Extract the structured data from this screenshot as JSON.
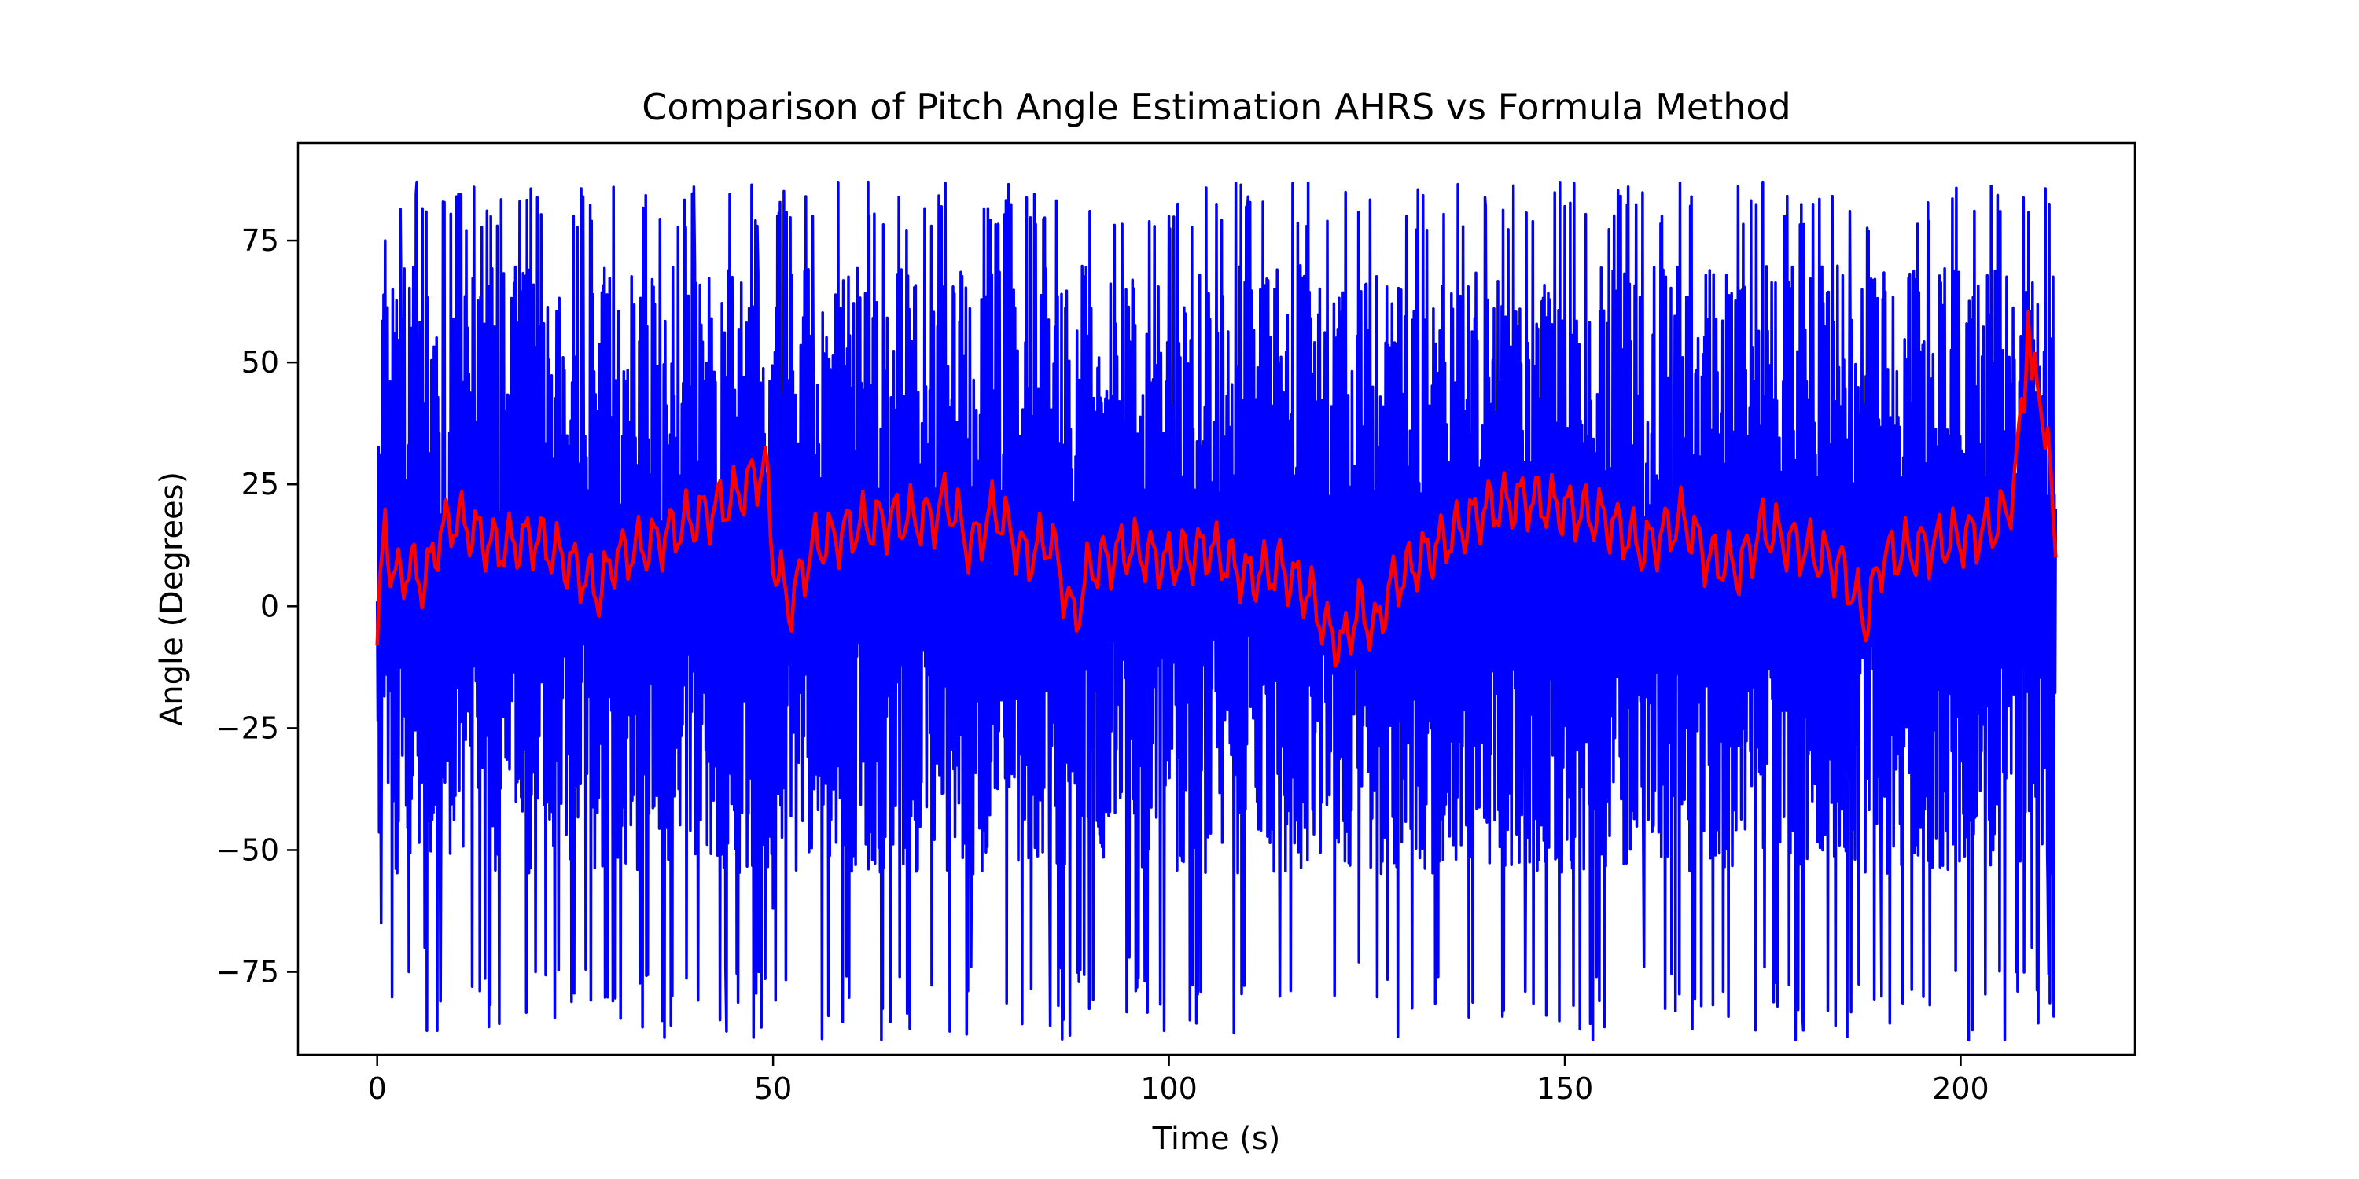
{
  "chart_data": {
    "type": "line",
    "title": "Comparison of Pitch Angle Estimation AHRS vs Formula Method",
    "xlabel": "Time (s)",
    "ylabel": "Angle (Degrees)",
    "xlim": [
      -10,
      222
    ],
    "ylim": [
      -92,
      95
    ],
    "x_ticks": [
      0,
      50,
      100,
      150,
      200
    ],
    "y_ticks": [
      -75,
      -50,
      -25,
      0,
      25,
      50,
      75
    ],
    "legend": "none",
    "grid": false,
    "series": [
      {
        "color": "#0000ff",
        "description": "formula-method pitch estimate, high-frequency noise",
        "x_range": [
          0,
          212
        ],
        "envelope_max": 87,
        "envelope_min": -89,
        "typical_amplitude": [
          -55,
          70
        ],
        "sample_points": [
          [
            0,
            1
          ],
          [
            0.5,
            -65
          ],
          [
            1,
            75
          ],
          [
            2,
            -40
          ],
          [
            3,
            68
          ],
          [
            4,
            -75
          ],
          [
            5,
            87
          ],
          [
            6,
            -70
          ],
          [
            8,
            -81
          ],
          [
            10,
            84
          ],
          [
            12,
            -78
          ],
          [
            18,
            83
          ],
          [
            20,
            -75
          ],
          [
            26,
            84
          ],
          [
            30,
            -78
          ],
          [
            36,
            -85
          ],
          [
            40,
            86
          ],
          [
            44,
            -74
          ],
          [
            48,
            78
          ],
          [
            50,
            -62
          ],
          [
            55,
            80
          ],
          [
            57,
            -84
          ],
          [
            62,
            87
          ],
          [
            66,
            -76
          ],
          [
            70,
            78
          ],
          [
            75,
            -74
          ],
          [
            80,
            79
          ],
          [
            85,
            -86
          ],
          [
            90,
            81
          ],
          [
            95,
            -72
          ],
          [
            100,
            80
          ],
          [
            104,
            -79
          ],
          [
            110,
            84
          ],
          [
            114,
            -80
          ],
          [
            120,
            79
          ],
          [
            124,
            -73
          ],
          [
            130,
            80
          ],
          [
            134,
            -76
          ],
          [
            140,
            82
          ],
          [
            145,
            -79
          ],
          [
            150,
            82
          ],
          [
            154,
            -76
          ],
          [
            158,
            86
          ],
          [
            160,
            -74
          ],
          [
            166,
            84
          ],
          [
            170,
            -79
          ],
          [
            175,
            87
          ],
          [
            180,
            -83
          ],
          [
            186,
            81
          ],
          [
            190,
            -80
          ],
          [
            196,
            79
          ],
          [
            201,
            -89
          ],
          [
            205,
            81
          ],
          [
            207,
            -75
          ],
          [
            209,
            -70
          ],
          [
            210,
            49
          ],
          [
            211,
            -57
          ],
          [
            212,
            20
          ]
        ]
      },
      {
        "color": "#ff0000",
        "description": "AHRS pitch estimate, slowly varying",
        "points": [
          [
            0,
            -8
          ],
          [
            1,
            18
          ],
          [
            2,
            5
          ],
          [
            4,
            8
          ],
          [
            6,
            5
          ],
          [
            8,
            15
          ],
          [
            10,
            18
          ],
          [
            15,
            12
          ],
          [
            20,
            14
          ],
          [
            25,
            8
          ],
          [
            28,
            3
          ],
          [
            30,
            10
          ],
          [
            35,
            13
          ],
          [
            40,
            18
          ],
          [
            45,
            22
          ],
          [
            49,
            29
          ],
          [
            50,
            10
          ],
          [
            52,
            0
          ],
          [
            55,
            12
          ],
          [
            60,
            16
          ],
          [
            65,
            18
          ],
          [
            70,
            18
          ],
          [
            72,
            22
          ],
          [
            75,
            12
          ],
          [
            78,
            20
          ],
          [
            82,
            10
          ],
          [
            85,
            14
          ],
          [
            88,
            -3
          ],
          [
            90,
            8
          ],
          [
            95,
            12
          ],
          [
            100,
            9
          ],
          [
            105,
            12
          ],
          [
            110,
            6
          ],
          [
            114,
            8
          ],
          [
            118,
            2
          ],
          [
            120,
            -5
          ],
          [
            122,
            -8
          ],
          [
            124,
            0
          ],
          [
            126,
            -5
          ],
          [
            128,
            4
          ],
          [
            132,
            10
          ],
          [
            136,
            15
          ],
          [
            140,
            20
          ],
          [
            145,
            22
          ],
          [
            150,
            20
          ],
          [
            155,
            18
          ],
          [
            160,
            12
          ],
          [
            165,
            18
          ],
          [
            168,
            10
          ],
          [
            172,
            8
          ],
          [
            175,
            16
          ],
          [
            180,
            12
          ],
          [
            185,
            8
          ],
          [
            188,
            -3
          ],
          [
            190,
            10
          ],
          [
            195,
            12
          ],
          [
            200,
            14
          ],
          [
            204,
            16
          ],
          [
            206,
            20
          ],
          [
            207,
            28
          ],
          [
            208,
            45
          ],
          [
            208.5,
            62
          ],
          [
            209,
            45
          ],
          [
            210,
            45
          ],
          [
            211,
            32
          ],
          [
            212,
            10
          ]
        ]
      }
    ]
  }
}
